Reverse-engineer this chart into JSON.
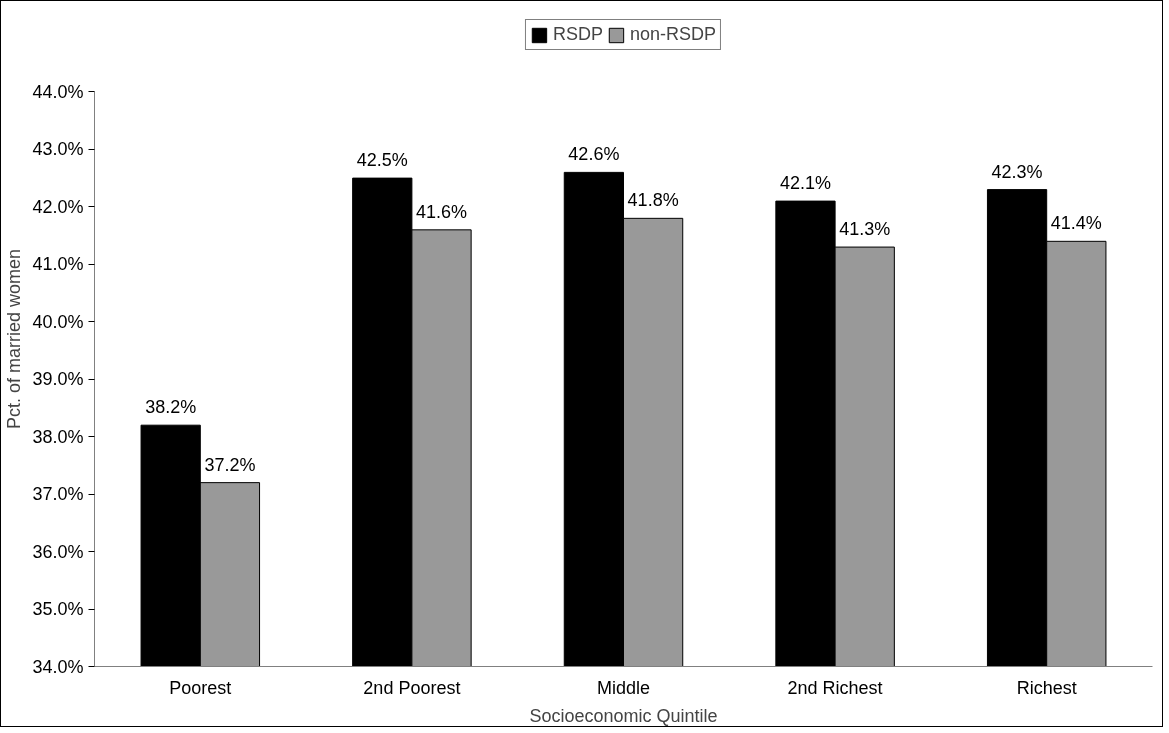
{
  "chart_data": {
    "type": "bar",
    "xlabel": "Socioeconomic Quintile",
    "ylabel": "Pct. of married women",
    "categories": [
      "Poorest",
      "2nd Poorest",
      "Middle",
      "2nd Richest",
      "Richest"
    ],
    "series": [
      {
        "name": "RSDP",
        "color": "#000000",
        "values": [
          38.2,
          42.5,
          42.6,
          42.1,
          42.3
        ],
        "value_labels": [
          "38.2%",
          "42.5%",
          "42.6%",
          "42.1%",
          "42.3%"
        ]
      },
      {
        "name": "non-RSDP",
        "color": "#999999",
        "values": [
          37.2,
          41.6,
          41.8,
          41.3,
          41.4
        ],
        "value_labels": [
          "37.2%",
          "41.6%",
          "41.8%",
          "41.3%",
          "41.4%"
        ]
      }
    ],
    "ylim": [
      34,
      44
    ],
    "yticks": [
      {
        "value": 34,
        "label": "34.0%"
      },
      {
        "value": 35,
        "label": "35.0%"
      },
      {
        "value": 36,
        "label": "36.0%"
      },
      {
        "value": 37,
        "label": "37.0%"
      },
      {
        "value": 38,
        "label": "38.0%"
      },
      {
        "value": 39,
        "label": "39.0%"
      },
      {
        "value": 40,
        "label": "40.0%"
      },
      {
        "value": 41,
        "label": "41.0%"
      },
      {
        "value": 42,
        "label": "42.0%"
      },
      {
        "value": 43,
        "label": "43.0%"
      },
      {
        "value": 44,
        "label": "44.0%"
      }
    ],
    "grid": false,
    "legend": "top"
  }
}
